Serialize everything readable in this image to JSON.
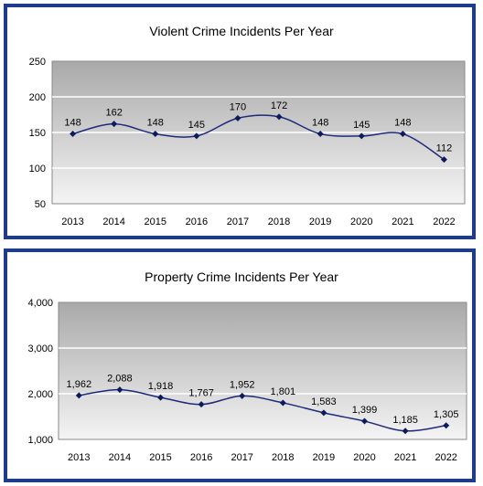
{
  "colors": {
    "border": "#1f3c8c",
    "line": "#1f2a7a",
    "marker": "#0d1a5c",
    "gridline": "#ffffff"
  },
  "chart_data": [
    {
      "type": "line",
      "title": "Violent Crime Incidents Per Year",
      "categories": [
        "2013",
        "2014",
        "2015",
        "2016",
        "2017",
        "2018",
        "2019",
        "2020",
        "2021",
        "2022"
      ],
      "values": [
        148,
        162,
        148,
        145,
        170,
        172,
        148,
        145,
        148,
        112
      ],
      "data_labels": [
        "148",
        "162",
        "148",
        "145",
        "170",
        "172",
        "148",
        "145",
        "148",
        "112"
      ],
      "ylim": [
        50,
        250
      ],
      "yticks": [
        50,
        100,
        150,
        200,
        250
      ],
      "ytick_labels": [
        "50",
        "100",
        "150",
        "200",
        "250"
      ],
      "smooth": true,
      "grid": true
    },
    {
      "type": "line",
      "title": "Property Crime Incidents Per Year",
      "categories": [
        "2013",
        "2014",
        "2015",
        "2016",
        "2017",
        "2018",
        "2019",
        "2020",
        "2021",
        "2022"
      ],
      "values": [
        1962,
        2088,
        1918,
        1767,
        1952,
        1801,
        1583,
        1399,
        1185,
        1305
      ],
      "data_labels": [
        "1,962",
        "2,088",
        "1,918",
        "1,767",
        "1,952",
        "1,801",
        "1,583",
        "1,399",
        "1,185",
        "1,305"
      ],
      "ylim": [
        1000,
        4000
      ],
      "yticks": [
        1000,
        2000,
        3000,
        4000
      ],
      "ytick_labels": [
        "1,000",
        "2,000",
        "3,000",
        "4,000"
      ],
      "smooth": true,
      "grid": true
    }
  ]
}
